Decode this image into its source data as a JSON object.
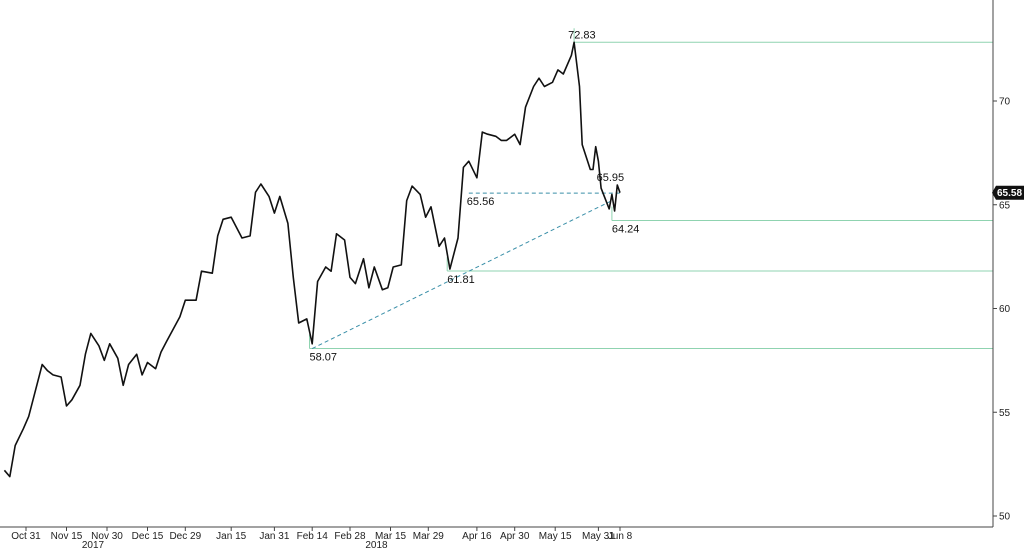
{
  "chart_data": {
    "type": "line",
    "title": "",
    "xlabel": "",
    "ylabel": "",
    "ylim": [
      49.5,
      75
    ],
    "y_ticks": [
      50,
      55,
      60,
      65,
      70
    ],
    "y_tick_labels": [
      "50",
      "55",
      "60",
      "65",
      "70"
    ],
    "x_ticks": [
      {
        "date": "2017-10-31",
        "label": "Oct 31"
      },
      {
        "date": "2017-11-15",
        "label": "Nov 15"
      },
      {
        "date": "2017-11-30",
        "label": "Nov 30"
      },
      {
        "date": "2017-12-15",
        "label": "Dec 15"
      },
      {
        "date": "2017-12-29",
        "label": "Dec 29"
      },
      {
        "date": "2018-01-15",
        "label": "Jan 15"
      },
      {
        "date": "2018-01-31",
        "label": "Jan 31"
      },
      {
        "date": "2018-02-14",
        "label": "Feb 14"
      },
      {
        "date": "2018-02-28",
        "label": "Feb 28"
      },
      {
        "date": "2018-03-15",
        "label": "Mar 15"
      },
      {
        "date": "2018-03-29",
        "label": "Mar 29"
      },
      {
        "date": "2018-04-16",
        "label": "Apr 16"
      },
      {
        "date": "2018-04-30",
        "label": "Apr 30"
      },
      {
        "date": "2018-05-15",
        "label": "May 15"
      },
      {
        "date": "2018-05-31",
        "label": "May 31"
      },
      {
        "date": "2018-06-08",
        "label": "Jun 8"
      }
    ],
    "year_labels": [
      {
        "date": "2017-11-30",
        "label": "2017"
      },
      {
        "date": "2018-03-15",
        "label": "2018"
      }
    ],
    "series": [
      {
        "color": "#111111",
        "points": [
          [
            "2017-10-23",
            52.2
          ],
          [
            "2017-10-25",
            51.9
          ],
          [
            "2017-10-27",
            53.4
          ],
          [
            "2017-10-30",
            54.2
          ],
          [
            "2017-11-01",
            54.8
          ],
          [
            "2017-11-03",
            55.8
          ],
          [
            "2017-11-06",
            57.3
          ],
          [
            "2017-11-08",
            57.0
          ],
          [
            "2017-11-10",
            56.8
          ],
          [
            "2017-11-13",
            56.7
          ],
          [
            "2017-11-15",
            55.3
          ],
          [
            "2017-11-17",
            55.6
          ],
          [
            "2017-11-20",
            56.3
          ],
          [
            "2017-11-22",
            57.8
          ],
          [
            "2017-11-24",
            58.8
          ],
          [
            "2017-11-27",
            58.2
          ],
          [
            "2017-11-29",
            57.5
          ],
          [
            "2017-12-01",
            58.3
          ],
          [
            "2017-12-04",
            57.6
          ],
          [
            "2017-12-06",
            56.3
          ],
          [
            "2017-12-08",
            57.3
          ],
          [
            "2017-12-11",
            57.8
          ],
          [
            "2017-12-13",
            56.8
          ],
          [
            "2017-12-15",
            57.4
          ],
          [
            "2017-12-18",
            57.1
          ],
          [
            "2017-12-20",
            57.9
          ],
          [
            "2017-12-22",
            58.4
          ],
          [
            "2017-12-27",
            59.6
          ],
          [
            "2017-12-29",
            60.4
          ],
          [
            "2018-01-02",
            60.4
          ],
          [
            "2018-01-04",
            61.8
          ],
          [
            "2018-01-08",
            61.7
          ],
          [
            "2018-01-10",
            63.5
          ],
          [
            "2018-01-12",
            64.3
          ],
          [
            "2018-01-15",
            64.4
          ],
          [
            "2018-01-17",
            63.9
          ],
          [
            "2018-01-19",
            63.4
          ],
          [
            "2018-01-22",
            63.5
          ],
          [
            "2018-01-24",
            65.6
          ],
          [
            "2018-01-26",
            66.0
          ],
          [
            "2018-01-29",
            65.4
          ],
          [
            "2018-01-31",
            64.6
          ],
          [
            "2018-02-02",
            65.4
          ],
          [
            "2018-02-05",
            64.1
          ],
          [
            "2018-02-07",
            61.5
          ],
          [
            "2018-02-09",
            59.3
          ],
          [
            "2018-02-12",
            59.5
          ],
          [
            "2018-02-14",
            58.3
          ],
          [
            "2018-02-16",
            61.3
          ],
          [
            "2018-02-19",
            62.0
          ],
          [
            "2018-02-21",
            61.8
          ],
          [
            "2018-02-23",
            63.6
          ],
          [
            "2018-02-26",
            63.3
          ],
          [
            "2018-02-28",
            61.5
          ],
          [
            "2018-03-02",
            61.2
          ],
          [
            "2018-03-05",
            62.4
          ],
          [
            "2018-03-07",
            61.0
          ],
          [
            "2018-03-09",
            62.0
          ],
          [
            "2018-03-12",
            60.9
          ],
          [
            "2018-03-14",
            61.0
          ],
          [
            "2018-03-16",
            62.0
          ],
          [
            "2018-03-19",
            62.1
          ],
          [
            "2018-03-21",
            65.2
          ],
          [
            "2018-03-23",
            65.9
          ],
          [
            "2018-03-26",
            65.5
          ],
          [
            "2018-03-28",
            64.4
          ],
          [
            "2018-03-30",
            64.9
          ],
          [
            "2018-04-02",
            63.0
          ],
          [
            "2018-04-04",
            63.4
          ],
          [
            "2018-04-06",
            61.9
          ],
          [
            "2018-04-09",
            63.4
          ],
          [
            "2018-04-11",
            66.8
          ],
          [
            "2018-04-13",
            67.1
          ],
          [
            "2018-04-16",
            66.3
          ],
          [
            "2018-04-18",
            68.5
          ],
          [
            "2018-04-20",
            68.4
          ],
          [
            "2018-04-23",
            68.3
          ],
          [
            "2018-04-25",
            68.1
          ],
          [
            "2018-04-27",
            68.1
          ],
          [
            "2018-04-30",
            68.4
          ],
          [
            "2018-05-02",
            67.9
          ],
          [
            "2018-05-04",
            69.7
          ],
          [
            "2018-05-07",
            70.7
          ],
          [
            "2018-05-09",
            71.1
          ],
          [
            "2018-05-11",
            70.7
          ],
          [
            "2018-05-14",
            70.9
          ],
          [
            "2018-05-16",
            71.5
          ],
          [
            "2018-05-18",
            71.3
          ],
          [
            "2018-05-21",
            72.2
          ],
          [
            "2018-05-22",
            72.83
          ],
          [
            "2018-05-24",
            70.7
          ],
          [
            "2018-05-25",
            67.9
          ],
          [
            "2018-05-28",
            66.7
          ],
          [
            "2018-05-29",
            66.7
          ],
          [
            "2018-05-30",
            67.8
          ],
          [
            "2018-05-31",
            67.1
          ],
          [
            "2018-06-01",
            65.8
          ],
          [
            "2018-06-04",
            64.8
          ],
          [
            "2018-06-05",
            65.5
          ],
          [
            "2018-06-06",
            64.7
          ],
          [
            "2018-06-07",
            65.95
          ],
          [
            "2018-06-08",
            65.58
          ]
        ]
      }
    ],
    "horizontal_lines": [
      {
        "from": "2018-05-22",
        "value": 72.83,
        "label": "72.83",
        "color": "#8fd3b0"
      },
      {
        "from": "2018-06-05",
        "value": 64.24,
        "label": "64.24",
        "color": "#8fd3b0"
      },
      {
        "from": "2018-04-05",
        "value": 61.81,
        "label": "61.81",
        "color": "#8fd3b0"
      },
      {
        "from": "2018-02-13",
        "value": 58.07,
        "label": "58.07",
        "color": "#8fd3b0"
      }
    ],
    "dashed_lines": [
      {
        "from": [
          "2018-04-13",
          65.56
        ],
        "to": [
          "2018-06-08",
          65.56
        ],
        "label": "65.56",
        "color": "#3a8fa8"
      },
      {
        "from": [
          "2018-02-14",
          58.07
        ],
        "to": [
          "2018-06-05",
          65.2
        ],
        "color": "#3a8fa8"
      }
    ],
    "annotations": [
      {
        "label": "65.95",
        "date": "2018-06-06",
        "value": 65.95
      }
    ],
    "last_value": {
      "label": "65.58",
      "value": 65.58,
      "bg_color": "#111111"
    }
  }
}
